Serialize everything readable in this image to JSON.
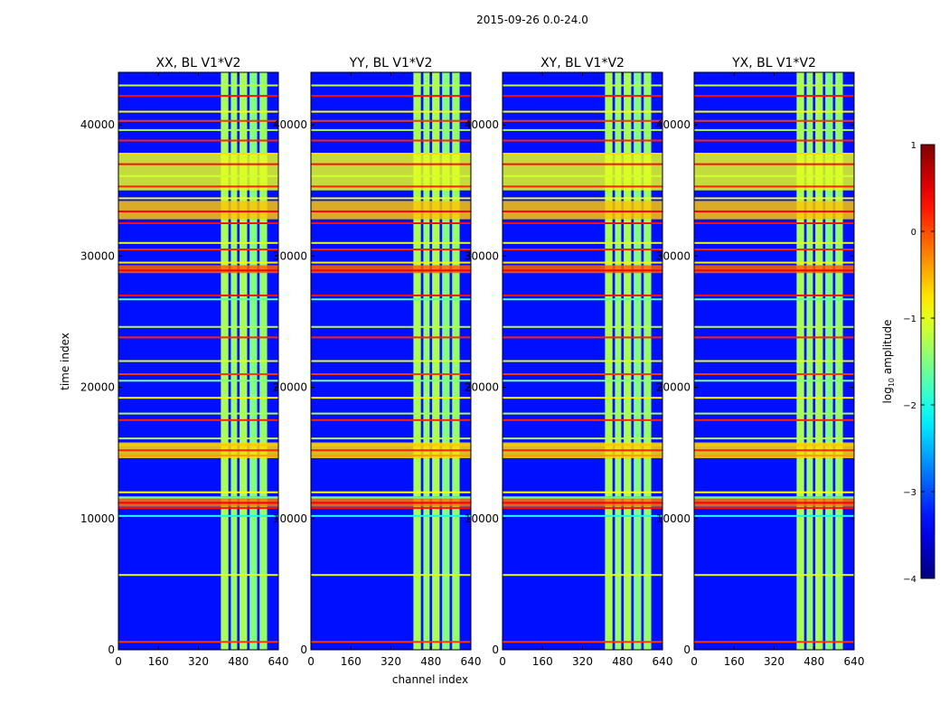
{
  "figure": {
    "suptitle": "2015-09-26 0.0-24.0",
    "xlabel": "channel index",
    "ylabel": "time index",
    "colorbar_label_prefix": "log",
    "colorbar_label_sub": "10",
    "colorbar_label_suffix": " amplitude"
  },
  "chart_data": {
    "type": "heatmap",
    "colormap": "jet",
    "xlim": [
      0,
      640
    ],
    "ylim": [
      0,
      44000
    ],
    "x_ticks": [
      "0",
      "160",
      "320",
      "480",
      "640"
    ],
    "y_ticks": [
      "0",
      "10000",
      "20000",
      "30000",
      "40000"
    ],
    "y_tick_values": [
      0,
      10000,
      20000,
      30000,
      40000
    ],
    "x_tick_values": [
      0,
      160,
      320,
      480,
      640
    ],
    "colorbar": {
      "vmin": -4,
      "vmax": 1,
      "ticks": [
        "−4",
        "−3",
        "−2",
        "−1",
        "0",
        "1"
      ],
      "tick_values": [
        -4,
        -3,
        -2,
        -1,
        0,
        1
      ]
    },
    "panels": [
      {
        "title": "XX, BL V1*V2"
      },
      {
        "title": "YY, BL V1*V2"
      },
      {
        "title": "XY, BL V1*V2"
      },
      {
        "title": "YX, BL V1*V2"
      }
    ],
    "background_level": -3.3,
    "signal_channel_bands": [
      {
        "from": 410,
        "to": 440,
        "level": -1.3
      },
      {
        "from": 450,
        "to": 475,
        "level": -1.4
      },
      {
        "from": 485,
        "to": 515,
        "level": -1.3
      },
      {
        "from": 525,
        "to": 555,
        "level": -1.5
      },
      {
        "from": 565,
        "to": 595,
        "level": -1.4
      }
    ],
    "flagged_time_rows": [
      {
        "t": 600,
        "level": 0.1
      },
      {
        "t": 5700,
        "level": -1.0
      },
      {
        "t": 10200,
        "level": -2.0
      },
      {
        "t": 10800,
        "level": 0.3
      },
      {
        "t": 11200,
        "level": 0.4
      },
      {
        "t": 11600,
        "level": -1.6
      },
      {
        "t": 12000,
        "level": -0.9
      },
      {
        "t": 14800,
        "level": -0.4
      },
      {
        "t": 15200,
        "level": 0.2
      },
      {
        "t": 15600,
        "level": -0.6
      },
      {
        "t": 16100,
        "level": -1.2
      },
      {
        "t": 17500,
        "level": 0.2
      },
      {
        "t": 18000,
        "level": -1.3
      },
      {
        "t": 19200,
        "level": -0.8
      },
      {
        "t": 20500,
        "level": -1.5
      },
      {
        "t": 21000,
        "level": 0.1
      },
      {
        "t": 22000,
        "level": -1.0
      },
      {
        "t": 23800,
        "level": 0.2
      },
      {
        "t": 24600,
        "level": -1.2
      },
      {
        "t": 26700,
        "level": -1.7
      },
      {
        "t": 27000,
        "level": 0.3
      },
      {
        "t": 28900,
        "level": 0.4
      },
      {
        "t": 29500,
        "level": -0.8
      },
      {
        "t": 30500,
        "level": 0.2
      },
      {
        "t": 31000,
        "level": -1.0
      },
      {
        "t": 32500,
        "level": 0.3
      },
      {
        "t": 33400,
        "level": 0.4
      },
      {
        "t": 34400,
        "level": -0.9
      },
      {
        "t": 35300,
        "level": 0.2
      },
      {
        "t": 36100,
        "level": -1.1
      },
      {
        "t": 37000,
        "level": 0.3
      },
      {
        "t": 37800,
        "level": -0.7
      },
      {
        "t": 38800,
        "level": 0.2
      },
      {
        "t": 39600,
        "level": -1.3
      },
      {
        "t": 40300,
        "level": 0.1
      },
      {
        "t": 41000,
        "level": -0.9
      },
      {
        "t": 42200,
        "level": 0.3
      },
      {
        "t": 43000,
        "level": -1.2
      }
    ],
    "flagged_time_blocks": [
      {
        "from": 10900,
        "to": 11700,
        "level": -0.2
      },
      {
        "from": 14600,
        "to": 15800,
        "level": -0.7
      },
      {
        "from": 28700,
        "to": 29300,
        "level": -0.1
      },
      {
        "from": 32800,
        "to": 34200,
        "level": -0.6
      },
      {
        "from": 35000,
        "to": 37800,
        "level": -1.0
      }
    ]
  }
}
